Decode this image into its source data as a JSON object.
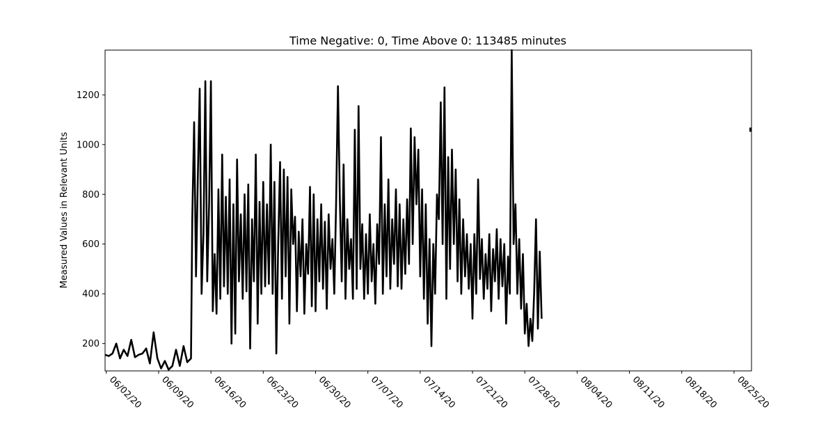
{
  "chart_data": {
    "type": "line",
    "title": "Time Negative: 0, Time Above 0: 113485 minutes",
    "xlabel": "",
    "ylabel": "Measured Values in Relevant Units",
    "x_type": "date",
    "x_ticks": [
      "06/02/20",
      "06/09/20",
      "06/16/20",
      "06/23/20",
      "06/30/20",
      "07/07/20",
      "07/14/20",
      "07/21/20",
      "07/28/20",
      "08/04/20",
      "08/11/20",
      "08/18/20",
      "08/25/20"
    ],
    "xlim": [
      "2020-06-01 20:00",
      "2020-08-27 08:00"
    ],
    "y_ticks": [
      200,
      400,
      600,
      800,
      1000,
      1200
    ],
    "ylim": [
      90,
      1380
    ],
    "grid": false,
    "legend": "none",
    "colors": {
      "line": "#000000",
      "background": "#ffffff",
      "axes": "#000000"
    },
    "series": [
      {
        "points": [
          [
            "2020-06-01 20:00",
            155
          ],
          [
            "2020-06-02 08:00",
            150
          ],
          [
            "2020-06-02 20:00",
            160
          ],
          [
            "2020-06-03 08:00",
            200
          ],
          [
            "2020-06-03 20:00",
            140
          ],
          [
            "2020-06-04 08:00",
            175
          ],
          [
            "2020-06-04 20:00",
            150
          ],
          [
            "2020-06-05 08:00",
            215
          ],
          [
            "2020-06-05 20:00",
            145
          ],
          [
            "2020-06-06 08:00",
            155
          ],
          [
            "2020-06-06 20:00",
            160
          ],
          [
            "2020-06-07 08:00",
            180
          ],
          [
            "2020-06-07 20:00",
            120
          ],
          [
            "2020-06-08 08:00",
            245
          ],
          [
            "2020-06-08 20:00",
            140
          ],
          [
            "2020-06-09 08:00",
            100
          ],
          [
            "2020-06-09 20:00",
            130
          ],
          [
            "2020-06-10 08:00",
            95
          ],
          [
            "2020-06-10 20:00",
            110
          ],
          [
            "2020-06-11 08:00",
            175
          ],
          [
            "2020-06-11 20:00",
            110
          ],
          [
            "2020-06-12 08:00",
            190
          ],
          [
            "2020-06-12 20:00",
            125
          ],
          [
            "2020-06-13 08:00",
            140
          ],
          [
            "2020-06-13 12:00",
            700
          ],
          [
            "2020-06-13 18:00",
            1090
          ],
          [
            "2020-06-14 00:00",
            470
          ],
          [
            "2020-06-14 06:00",
            880
          ],
          [
            "2020-06-14 12:00",
            1225
          ],
          [
            "2020-06-14 18:00",
            400
          ],
          [
            "2020-06-15 00:00",
            640
          ],
          [
            "2020-06-15 06:00",
            1255
          ],
          [
            "2020-06-15 12:00",
            450
          ],
          [
            "2020-06-15 18:00",
            760
          ],
          [
            "2020-06-16 00:00",
            1255
          ],
          [
            "2020-06-16 06:00",
            330
          ],
          [
            "2020-06-16 12:00",
            560
          ],
          [
            "2020-06-16 18:00",
            320
          ],
          [
            "2020-06-17 00:00",
            820
          ],
          [
            "2020-06-17 06:00",
            380
          ],
          [
            "2020-06-17 12:00",
            960
          ],
          [
            "2020-06-17 18:00",
            430
          ],
          [
            "2020-06-18 00:00",
            790
          ],
          [
            "2020-06-18 06:00",
            400
          ],
          [
            "2020-06-18 12:00",
            860
          ],
          [
            "2020-06-18 18:00",
            200
          ],
          [
            "2020-06-19 00:00",
            760
          ],
          [
            "2020-06-19 06:00",
            240
          ],
          [
            "2020-06-19 12:00",
            940
          ],
          [
            "2020-06-19 18:00",
            450
          ],
          [
            "2020-06-20 00:00",
            720
          ],
          [
            "2020-06-20 06:00",
            380
          ],
          [
            "2020-06-20 12:00",
            800
          ],
          [
            "2020-06-20 18:00",
            410
          ],
          [
            "2020-06-21 00:00",
            840
          ],
          [
            "2020-06-21 06:00",
            180
          ],
          [
            "2020-06-21 12:00",
            700
          ],
          [
            "2020-06-21 18:00",
            450
          ],
          [
            "2020-06-22 00:00",
            960
          ],
          [
            "2020-06-22 06:00",
            280
          ],
          [
            "2020-06-22 12:00",
            770
          ],
          [
            "2020-06-22 18:00",
            400
          ],
          [
            "2020-06-23 00:00",
            850
          ],
          [
            "2020-06-23 06:00",
            430
          ],
          [
            "2020-06-23 12:00",
            760
          ],
          [
            "2020-06-23 18:00",
            440
          ],
          [
            "2020-06-24 00:00",
            1000
          ],
          [
            "2020-06-24 06:00",
            400
          ],
          [
            "2020-06-24 12:00",
            850
          ],
          [
            "2020-06-24 18:00",
            160
          ],
          [
            "2020-06-25 00:00",
            600
          ],
          [
            "2020-06-25 06:00",
            930
          ],
          [
            "2020-06-25 12:00",
            380
          ],
          [
            "2020-06-25 18:00",
            900
          ],
          [
            "2020-06-26 00:00",
            470
          ],
          [
            "2020-06-26 06:00",
            870
          ],
          [
            "2020-06-26 12:00",
            280
          ],
          [
            "2020-06-26 18:00",
            820
          ],
          [
            "2020-06-27 00:00",
            600
          ],
          [
            "2020-06-27 06:00",
            710
          ],
          [
            "2020-06-27 12:00",
            330
          ],
          [
            "2020-06-27 18:00",
            650
          ],
          [
            "2020-06-28 00:00",
            470
          ],
          [
            "2020-06-28 06:00",
            700
          ],
          [
            "2020-06-28 12:00",
            320
          ],
          [
            "2020-06-28 18:00",
            600
          ],
          [
            "2020-06-29 00:00",
            480
          ],
          [
            "2020-06-29 06:00",
            830
          ],
          [
            "2020-06-29 12:00",
            350
          ],
          [
            "2020-06-29 18:00",
            800
          ],
          [
            "2020-06-30 00:00",
            330
          ],
          [
            "2020-06-30 06:00",
            700
          ],
          [
            "2020-06-30 12:00",
            450
          ],
          [
            "2020-06-30 18:00",
            760
          ],
          [
            "2020-07-01 00:00",
            420
          ],
          [
            "2020-07-01 06:00",
            690
          ],
          [
            "2020-07-01 12:00",
            340
          ],
          [
            "2020-07-01 18:00",
            720
          ],
          [
            "2020-07-02 00:00",
            500
          ],
          [
            "2020-07-02 06:00",
            620
          ],
          [
            "2020-07-02 12:00",
            400
          ],
          [
            "2020-07-02 18:00",
            760
          ],
          [
            "2020-07-03 00:00",
            1235
          ],
          [
            "2020-07-03 06:00",
            780
          ],
          [
            "2020-07-03 12:00",
            450
          ],
          [
            "2020-07-03 18:00",
            920
          ],
          [
            "2020-07-04 00:00",
            380
          ],
          [
            "2020-07-04 06:00",
            700
          ],
          [
            "2020-07-04 12:00",
            500
          ],
          [
            "2020-07-04 18:00",
            620
          ],
          [
            "2020-07-05 00:00",
            380
          ],
          [
            "2020-07-05 06:00",
            1060
          ],
          [
            "2020-07-05 12:00",
            420
          ],
          [
            "2020-07-05 18:00",
            1155
          ],
          [
            "2020-07-06 00:00",
            500
          ],
          [
            "2020-07-06 06:00",
            680
          ],
          [
            "2020-07-06 12:00",
            380
          ],
          [
            "2020-07-06 18:00",
            640
          ],
          [
            "2020-07-07 00:00",
            400
          ],
          [
            "2020-07-07 06:00",
            720
          ],
          [
            "2020-07-07 12:00",
            450
          ],
          [
            "2020-07-07 18:00",
            600
          ],
          [
            "2020-07-08 00:00",
            360
          ],
          [
            "2020-07-08 06:00",
            680
          ],
          [
            "2020-07-08 12:00",
            520
          ],
          [
            "2020-07-08 18:00",
            1030
          ],
          [
            "2020-07-09 00:00",
            400
          ],
          [
            "2020-07-09 06:00",
            760
          ],
          [
            "2020-07-09 12:00",
            470
          ],
          [
            "2020-07-09 18:00",
            860
          ],
          [
            "2020-07-10 00:00",
            420
          ],
          [
            "2020-07-10 06:00",
            700
          ],
          [
            "2020-07-10 12:00",
            520
          ],
          [
            "2020-07-10 18:00",
            820
          ],
          [
            "2020-07-11 00:00",
            430
          ],
          [
            "2020-07-11 06:00",
            760
          ],
          [
            "2020-07-11 12:00",
            420
          ],
          [
            "2020-07-11 18:00",
            700
          ],
          [
            "2020-07-12 00:00",
            480
          ],
          [
            "2020-07-12 06:00",
            780
          ],
          [
            "2020-07-12 12:00",
            520
          ],
          [
            "2020-07-12 18:00",
            1065
          ],
          [
            "2020-07-13 00:00",
            600
          ],
          [
            "2020-07-13 06:00",
            1030
          ],
          [
            "2020-07-13 12:00",
            760
          ],
          [
            "2020-07-13 18:00",
            980
          ],
          [
            "2020-07-14 00:00",
            470
          ],
          [
            "2020-07-14 06:00",
            820
          ],
          [
            "2020-07-14 12:00",
            380
          ],
          [
            "2020-07-14 18:00",
            760
          ],
          [
            "2020-07-15 00:00",
            280
          ],
          [
            "2020-07-15 06:00",
            620
          ],
          [
            "2020-07-15 12:00",
            190
          ],
          [
            "2020-07-15 18:00",
            600
          ],
          [
            "2020-07-16 00:00",
            400
          ],
          [
            "2020-07-16 06:00",
            800
          ],
          [
            "2020-07-16 12:00",
            700
          ],
          [
            "2020-07-16 18:00",
            1170
          ],
          [
            "2020-07-17 00:00",
            600
          ],
          [
            "2020-07-17 06:00",
            1230
          ],
          [
            "2020-07-17 12:00",
            380
          ],
          [
            "2020-07-17 18:00",
            950
          ],
          [
            "2020-07-18 00:00",
            500
          ],
          [
            "2020-07-18 06:00",
            980
          ],
          [
            "2020-07-18 12:00",
            600
          ],
          [
            "2020-07-18 18:00",
            900
          ],
          [
            "2020-07-19 00:00",
            450
          ],
          [
            "2020-07-19 06:00",
            780
          ],
          [
            "2020-07-19 12:00",
            400
          ],
          [
            "2020-07-19 18:00",
            700
          ],
          [
            "2020-07-20 00:00",
            470
          ],
          [
            "2020-07-20 06:00",
            640
          ],
          [
            "2020-07-20 12:00",
            420
          ],
          [
            "2020-07-20 18:00",
            600
          ],
          [
            "2020-07-21 00:00",
            300
          ],
          [
            "2020-07-21 06:00",
            640
          ],
          [
            "2020-07-21 12:00",
            400
          ],
          [
            "2020-07-21 18:00",
            860
          ],
          [
            "2020-07-22 00:00",
            460
          ],
          [
            "2020-07-22 06:00",
            620
          ],
          [
            "2020-07-22 12:00",
            380
          ],
          [
            "2020-07-22 18:00",
            560
          ],
          [
            "2020-07-23 00:00",
            420
          ],
          [
            "2020-07-23 06:00",
            640
          ],
          [
            "2020-07-23 12:00",
            330
          ],
          [
            "2020-07-23 18:00",
            580
          ],
          [
            "2020-07-24 00:00",
            450
          ],
          [
            "2020-07-24 06:00",
            660
          ],
          [
            "2020-07-24 12:00",
            380
          ],
          [
            "2020-07-24 18:00",
            620
          ],
          [
            "2020-07-25 00:00",
            430
          ],
          [
            "2020-07-25 06:00",
            600
          ],
          [
            "2020-07-25 12:00",
            280
          ],
          [
            "2020-07-25 18:00",
            550
          ],
          [
            "2020-07-26 00:00",
            400
          ],
          [
            "2020-07-26 06:00",
            1380
          ],
          [
            "2020-07-26 12:00",
            600
          ],
          [
            "2020-07-26 18:00",
            760
          ],
          [
            "2020-07-27 00:00",
            400
          ],
          [
            "2020-07-27 06:00",
            620
          ],
          [
            "2020-07-27 12:00",
            340
          ],
          [
            "2020-07-27 18:00",
            560
          ],
          [
            "2020-07-28 00:00",
            240
          ],
          [
            "2020-07-28 06:00",
            360
          ],
          [
            "2020-07-28 12:00",
            190
          ],
          [
            "2020-07-28 18:00",
            300
          ],
          [
            "2020-07-29 00:00",
            210
          ],
          [
            "2020-07-29 06:00",
            400
          ],
          [
            "2020-07-29 12:00",
            700
          ],
          [
            "2020-07-29 18:00",
            260
          ],
          [
            "2020-07-30 00:00",
            570
          ],
          [
            "2020-07-30 06:00",
            300
          ]
        ]
      },
      {
        "points": [
          [
            "2020-08-27 06:00",
            1060
          ]
        ]
      }
    ]
  }
}
